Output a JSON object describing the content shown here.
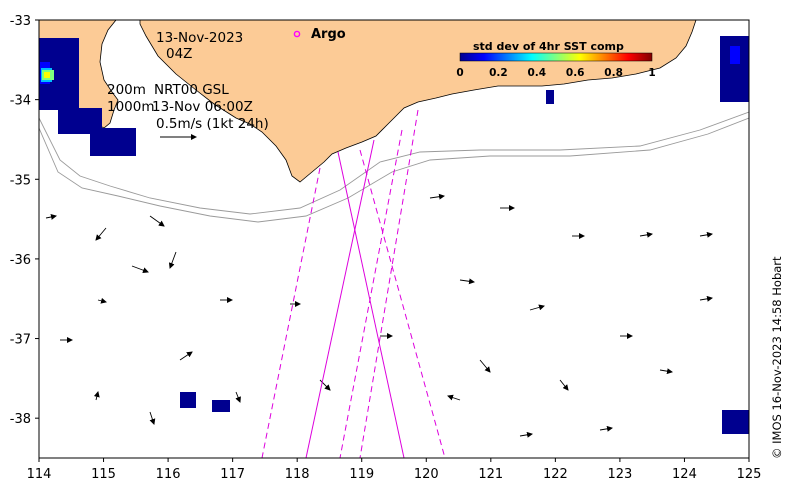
{
  "chart_data": {
    "type": "map",
    "xlim": [
      114,
      125
    ],
    "ylim": [
      -38.5,
      -33
    ],
    "x_ticks": [
      "114",
      "115",
      "116",
      "117",
      "118",
      "119",
      "120",
      "121",
      "122",
      "123",
      "124",
      "125"
    ],
    "y_ticks": [
      "-33",
      "-34",
      "-35",
      "-36",
      "-37",
      "-38"
    ],
    "annotations": {
      "date": "13-Nov-2023",
      "hour": "04Z",
      "isobath_200": "200m",
      "isobath_1000": "1000m",
      "product": "NRT00 GSL",
      "analysis_time": "13-Nov 06:00Z",
      "scale_label": "0.5m/s (1kt 24h)"
    },
    "legend": {
      "argo_label": "Argo",
      "argo_color": "#ff00ff"
    },
    "colorbar": {
      "title": "std dev of 4hr SST comp",
      "range": [
        0,
        1
      ],
      "ticks": [
        "0",
        "0.2",
        "0.4",
        "0.6",
        "0.8",
        "1"
      ],
      "colormap": "jet"
    },
    "colors": {
      "land": "#fccb96",
      "track": "#dd00dd",
      "isobath": "#9a9a9a",
      "sst_low": "#00008f"
    },
    "credit": "© IMOS 16-Nov-2023 14:58 Hobart"
  }
}
